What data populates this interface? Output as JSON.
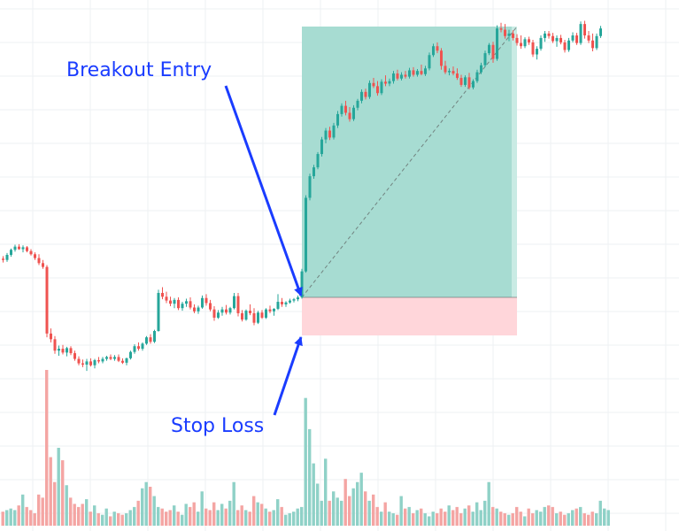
{
  "chart_data": {
    "type": "candlestick",
    "title": "",
    "xlabel": "",
    "ylabel": "",
    "grid": true,
    "colors": {
      "up": "#26a69a",
      "down": "#ef5350",
      "volume_up": "#8fd1c7",
      "volume_down": "#f4a5a3",
      "profit_zone": "#a7dcd2",
      "profit_zone_edge": "#c9ebe4",
      "loss_zone": "#ffd6da",
      "entry_line": "#555555",
      "annotation": "#1a3cff",
      "grid": "#eef0f3"
    },
    "price_range": [
      0,
      60
    ],
    "volume_range": [
      0,
      100
    ],
    "candles": [
      [
        23.4,
        23.8,
        22.8,
        23.2
      ],
      [
        23.2,
        24.3,
        22.9,
        24.0
      ],
      [
        24.0,
        25.0,
        23.7,
        24.8
      ],
      [
        24.8,
        25.6,
        24.5,
        25.3
      ],
      [
        25.3,
        25.7,
        24.8,
        24.9
      ],
      [
        24.9,
        25.5,
        24.4,
        25.2
      ],
      [
        25.2,
        25.4,
        24.4,
        24.6
      ],
      [
        24.6,
        24.9,
        23.9,
        24.1
      ],
      [
        24.1,
        24.4,
        23.2,
        23.5
      ],
      [
        23.5,
        24.1,
        22.4,
        22.7
      ],
      [
        22.7,
        23.2,
        21.8,
        22.1
      ],
      [
        22.1,
        22.4,
        11.0,
        11.6
      ],
      [
        11.6,
        12.4,
        10.2,
        10.7
      ],
      [
        10.7,
        11.2,
        8.4,
        8.9
      ],
      [
        8.9,
        9.7,
        8.1,
        9.2
      ],
      [
        9.2,
        9.8,
        8.3,
        8.6
      ],
      [
        8.6,
        9.5,
        8.0,
        9.3
      ],
      [
        9.3,
        9.6,
        8.2,
        8.5
      ],
      [
        8.5,
        8.9,
        7.3,
        7.6
      ],
      [
        7.6,
        8.0,
        6.6,
        6.9
      ],
      [
        6.9,
        7.5,
        6.3,
        6.7
      ],
      [
        6.7,
        7.6,
        5.7,
        7.2
      ],
      [
        7.2,
        7.7,
        6.4,
        6.6
      ],
      [
        6.6,
        7.6,
        6.1,
        7.4
      ],
      [
        7.4,
        7.9,
        6.9,
        7.2
      ],
      [
        7.2,
        7.9,
        6.9,
        7.6
      ],
      [
        7.6,
        8.1,
        7.3,
        7.9
      ],
      [
        7.9,
        8.3,
        7.4,
        7.6
      ],
      [
        7.6,
        8.2,
        7.3,
        7.9
      ],
      [
        7.9,
        8.3,
        7.1,
        7.3
      ],
      [
        7.3,
        7.7,
        6.8,
        7.0
      ],
      [
        7.0,
        7.8,
        6.6,
        7.7
      ],
      [
        7.7,
        8.9,
        7.5,
        8.7
      ],
      [
        8.7,
        9.9,
        8.4,
        9.6
      ],
      [
        9.6,
        10.2,
        8.9,
        9.2
      ],
      [
        9.2,
        10.2,
        8.9,
        10.0
      ],
      [
        10.0,
        11.2,
        9.8,
        11.0
      ],
      [
        11.0,
        11.5,
        10.0,
        10.3
      ],
      [
        10.3,
        12.2,
        10.1,
        12.0
      ],
      [
        12.0,
        18.5,
        11.9,
        18.0
      ],
      [
        18.0,
        18.9,
        17.0,
        17.4
      ],
      [
        17.4,
        18.2,
        16.4,
        16.8
      ],
      [
        16.8,
        17.4,
        15.9,
        16.3
      ],
      [
        16.3,
        17.2,
        15.6,
        16.9
      ],
      [
        16.9,
        17.3,
        15.3,
        15.6
      ],
      [
        15.6,
        16.6,
        15.2,
        16.3
      ],
      [
        16.3,
        17.1,
        15.8,
        16.7
      ],
      [
        16.7,
        17.3,
        15.4,
        15.7
      ],
      [
        15.7,
        16.2,
        14.8,
        15.1
      ],
      [
        15.1,
        16.0,
        14.7,
        15.7
      ],
      [
        15.7,
        17.6,
        15.5,
        17.2
      ],
      [
        17.2,
        17.8,
        16.0,
        16.4
      ],
      [
        16.4,
        16.9,
        15.1,
        15.4
      ],
      [
        15.4,
        15.9,
        13.6,
        14.1
      ],
      [
        14.1,
        15.3,
        13.9,
        14.9
      ],
      [
        14.9,
        15.8,
        14.4,
        15.4
      ],
      [
        15.4,
        16.1,
        14.6,
        14.9
      ],
      [
        14.9,
        15.8,
        14.6,
        15.6
      ],
      [
        15.6,
        18.0,
        15.4,
        17.5
      ],
      [
        17.5,
        18.0,
        14.3,
        14.8
      ],
      [
        14.8,
        15.3,
        13.5,
        13.8
      ],
      [
        13.8,
        15.4,
        13.6,
        15.2
      ],
      [
        15.2,
        16.2,
        14.5,
        14.8
      ],
      [
        14.8,
        15.6,
        12.9,
        13.3
      ],
      [
        13.3,
        15.2,
        13.1,
        14.9
      ],
      [
        14.9,
        15.3,
        13.9,
        14.1
      ],
      [
        14.1,
        15.6,
        13.9,
        15.4
      ],
      [
        15.4,
        16.0,
        14.8,
        15.1
      ],
      [
        15.1,
        15.6,
        14.4,
        15.5
      ],
      [
        15.5,
        17.8,
        15.3,
        16.6
      ],
      [
        16.6,
        17.2,
        15.8,
        16.2
      ],
      [
        16.2,
        16.7,
        15.8,
        16.5
      ],
      [
        16.5,
        17.1,
        16.3,
        16.8
      ],
      [
        16.8,
        17.2,
        16.5,
        17.0
      ],
      [
        17.0,
        17.6,
        16.7,
        17.3
      ],
      [
        17.3,
        21.8,
        17.1,
        21.4
      ],
      [
        21.4,
        33.4,
        21.2,
        33.0
      ],
      [
        33.0,
        36.8,
        32.6,
        36.4
      ],
      [
        36.4,
        38.2,
        36.0,
        37.8
      ],
      [
        37.8,
        40.2,
        37.5,
        39.9
      ],
      [
        39.9,
        42.6,
        39.5,
        42.2
      ],
      [
        42.2,
        44.0,
        41.6,
        43.6
      ],
      [
        43.6,
        44.2,
        42.1,
        42.5
      ],
      [
        42.5,
        44.8,
        42.2,
        44.4
      ],
      [
        44.4,
        46.7,
        44.0,
        46.2
      ],
      [
        46.2,
        47.9,
        45.8,
        47.5
      ],
      [
        47.5,
        48.3,
        46.0,
        46.4
      ],
      [
        46.4,
        47.3,
        45.0,
        45.4
      ],
      [
        45.4,
        47.6,
        45.1,
        47.2
      ],
      [
        47.2,
        48.6,
        46.8,
        48.3
      ],
      [
        48.3,
        50.1,
        47.9,
        49.7
      ],
      [
        49.7,
        50.2,
        48.5,
        48.9
      ],
      [
        48.9,
        51.5,
        48.6,
        51.1
      ],
      [
        51.1,
        51.9,
        50.3,
        50.6
      ],
      [
        50.6,
        51.4,
        49.1,
        49.5
      ],
      [
        49.5,
        51.7,
        49.2,
        51.3
      ],
      [
        51.3,
        52.3,
        50.6,
        51.0
      ],
      [
        51.0,
        51.8,
        50.6,
        51.4
      ],
      [
        51.4,
        53.0,
        51.0,
        52.6
      ],
      [
        52.6,
        53.2,
        51.5,
        51.8
      ],
      [
        51.8,
        52.8,
        51.5,
        52.4
      ],
      [
        52.4,
        53.0,
        51.8,
        52.1
      ],
      [
        52.1,
        53.5,
        51.8,
        53.1
      ],
      [
        53.1,
        53.6,
        52.1,
        52.4
      ],
      [
        52.4,
        53.3,
        52.1,
        53.0
      ],
      [
        53.0,
        54.0,
        52.3,
        52.5
      ],
      [
        52.5,
        53.8,
        52.2,
        53.4
      ],
      [
        53.4,
        55.9,
        53.1,
        55.5
      ],
      [
        55.5,
        57.3,
        55.2,
        56.9
      ],
      [
        56.9,
        57.5,
        55.8,
        56.2
      ],
      [
        56.2,
        56.6,
        53.2,
        53.8
      ],
      [
        53.8,
        54.6,
        52.5,
        52.8
      ],
      [
        52.8,
        53.4,
        52.3,
        53.0
      ],
      [
        53.0,
        53.7,
        52.3,
        52.6
      ],
      [
        52.6,
        53.4,
        51.6,
        51.9
      ],
      [
        51.9,
        52.4,
        50.5,
        50.8
      ],
      [
        50.8,
        52.3,
        50.5,
        52.0
      ],
      [
        52.0,
        52.7,
        50.1,
        50.4
      ],
      [
        50.4,
        51.7,
        50.1,
        51.4
      ],
      [
        51.4,
        53.2,
        51.1,
        52.8
      ],
      [
        52.8,
        54.3,
        52.5,
        53.9
      ],
      [
        53.9,
        56.2,
        53.6,
        55.8
      ],
      [
        55.8,
        57.4,
        55.5,
        57.1
      ],
      [
        57.1,
        57.6,
        54.3,
        54.9
      ],
      [
        54.9,
        60.2,
        54.6,
        59.7
      ],
      [
        59.7,
        60.6,
        59.1,
        59.5
      ],
      [
        59.5,
        60.4,
        58.1,
        58.5
      ],
      [
        58.5,
        59.5,
        57.7,
        58.9
      ],
      [
        58.9,
        59.4,
        57.8,
        58.2
      ],
      [
        58.2,
        58.8,
        57.0,
        57.4
      ],
      [
        57.4,
        58.6,
        56.5,
        56.9
      ],
      [
        56.9,
        58.3,
        56.6,
        58.0
      ],
      [
        58.0,
        58.4,
        57.1,
        57.5
      ],
      [
        57.5,
        57.9,
        55.2,
        55.6
      ],
      [
        55.6,
        56.9,
        54.8,
        56.5
      ],
      [
        56.5,
        58.6,
        56.2,
        58.2
      ],
      [
        58.2,
        59.3,
        57.6,
        58.9
      ],
      [
        58.9,
        59.3,
        58.1,
        58.5
      ],
      [
        58.5,
        59.0,
        57.4,
        57.7
      ],
      [
        57.7,
        58.6,
        56.8,
        58.2
      ],
      [
        58.2,
        58.7,
        57.2,
        57.5
      ],
      [
        57.5,
        57.9,
        55.9,
        56.3
      ],
      [
        56.3,
        58.2,
        56.0,
        57.8
      ],
      [
        57.8,
        59.1,
        57.5,
        58.6
      ],
      [
        58.6,
        59.0,
        57.1,
        57.4
      ],
      [
        57.4,
        60.8,
        57.1,
        60.4
      ],
      [
        60.4,
        60.9,
        58.1,
        58.6
      ],
      [
        58.6,
        59.3,
        57.4,
        57.8
      ],
      [
        57.8,
        58.9,
        56.1,
        56.6
      ],
      [
        56.6,
        58.9,
        56.3,
        58.5
      ],
      [
        58.5,
        60.1,
        58.2,
        59.7
      ]
    ],
    "volumes": [
      9,
      10,
      11,
      10,
      13,
      20,
      12,
      10,
      8,
      20,
      18,
      100,
      44,
      28,
      50,
      42,
      26,
      18,
      14,
      12,
      14,
      17,
      9,
      13,
      8,
      7,
      11,
      6,
      9,
      8,
      7,
      8,
      10,
      12,
      16,
      24,
      28,
      25,
      19,
      12,
      11,
      9,
      10,
      13,
      9,
      7,
      14,
      12,
      15,
      9,
      22,
      11,
      10,
      15,
      10,
      14,
      11,
      16,
      28,
      10,
      13,
      10,
      9,
      19,
      15,
      14,
      11,
      9,
      10,
      17,
      12,
      7,
      8,
      9,
      11,
      12,
      82,
      62,
      40,
      27,
      16,
      43,
      16,
      22,
      18,
      16,
      30,
      19,
      24,
      28,
      34,
      22,
      16,
      20,
      12,
      9,
      15,
      9,
      8,
      7,
      19,
      11,
      12,
      8,
      10,
      11,
      8,
      6,
      9,
      8,
      11,
      9,
      13,
      10,
      12,
      8,
      11,
      13,
      9,
      15,
      10,
      16,
      28,
      12,
      11,
      9,
      8,
      7,
      8,
      12,
      9,
      6,
      11,
      8,
      10,
      9,
      12,
      13,
      12,
      8,
      9,
      7,
      8,
      10,
      11,
      12,
      8,
      7,
      9,
      8,
      16,
      11,
      10
    ]
  },
  "trade": {
    "entry_index": 75,
    "exit_index": 129,
    "entry_price": 17.3,
    "stop_price": 11.3,
    "target_price": 60.0
  },
  "annotations": {
    "entry_label": "Breakout Entry",
    "stop_label": "Stop Loss"
  }
}
